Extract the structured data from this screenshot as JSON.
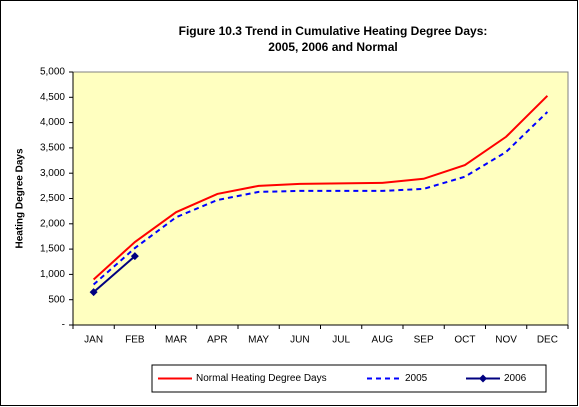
{
  "chart_data": {
    "type": "line",
    "title": [
      "Figure 10.3  Trend in Cumulative Heating Degree Days:",
      "2005, 2006 and Normal"
    ],
    "y_label": "Heating Degree Days",
    "categories": [
      "JAN",
      "FEB",
      "MAR",
      "APR",
      "MAY",
      "JUN",
      "JUL",
      "AUG",
      "SEP",
      "OCT",
      "NOV",
      "DEC"
    ],
    "series": [
      {
        "name": "Normal Heating Degree Days",
        "color": "#ff0000",
        "dash": false,
        "marker": false,
        "values": [
          900,
          1640,
          2230,
          2590,
          2750,
          2790,
          2800,
          2810,
          2890,
          3160,
          3720,
          4530
        ]
      },
      {
        "name": "2005",
        "color": "#0000ff",
        "dash": true,
        "marker": false,
        "values": [
          800,
          1520,
          2130,
          2470,
          2630,
          2650,
          2650,
          2650,
          2690,
          2930,
          3420,
          4210
        ]
      },
      {
        "name": "2006",
        "color": "#000080",
        "dash": false,
        "marker": true,
        "values": [
          650,
          1360,
          null,
          null,
          null,
          null,
          null,
          null,
          null,
          null,
          null,
          null
        ]
      }
    ],
    "ylim": [
      0,
      5000
    ],
    "yticks": [
      {
        "value": 0,
        "label": "-"
      },
      500,
      {
        "value": 1000,
        "label": "1,000"
      },
      {
        "value": 1500,
        "label": "1,500"
      },
      {
        "value": 2000,
        "label": "2,000"
      },
      {
        "value": 2500,
        "label": "2,500"
      },
      {
        "value": 3000,
        "label": "3,000"
      },
      {
        "value": 3500,
        "label": "3,500"
      },
      {
        "value": 4000,
        "label": "4,000"
      },
      {
        "value": 4500,
        "label": "4,500"
      },
      {
        "value": 5000,
        "label": "5,000"
      }
    ],
    "grid": false,
    "legend": "bottom",
    "plot_background": "#ffffc0"
  }
}
